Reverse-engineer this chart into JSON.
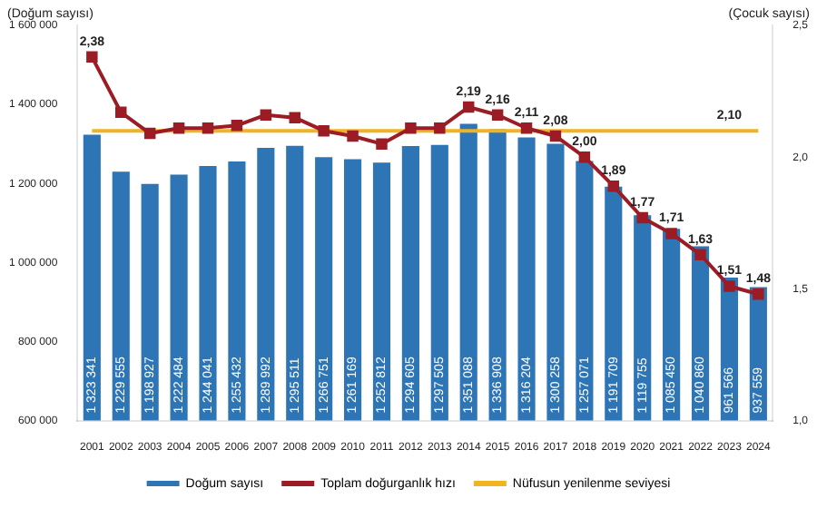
{
  "chart_data": {
    "type": "bar",
    "ylabel": "(Doğum sayısı)",
    "y2label": "(Çocuk sayısı)",
    "categories": [
      "2001",
      "2002",
      "2003",
      "2004",
      "2005",
      "2006",
      "2007",
      "2008",
      "2009",
      "2010",
      "2011",
      "2012",
      "2013",
      "2014",
      "2015",
      "2016",
      "2017",
      "2018",
      "2019",
      "2020",
      "2021",
      "2022",
      "2023",
      "2024"
    ],
    "series": [
      {
        "name": "Doğum sayısı",
        "color": "#2e75b6",
        "values": [
          1323341,
          1229555,
          1198927,
          1222484,
          1244041,
          1255432,
          1289992,
          1295511,
          1266751,
          1261169,
          1252812,
          1294605,
          1297505,
          1351088,
          1336908,
          1316204,
          1300258,
          1257071,
          1191709,
          1119755,
          1085450,
          1040860,
          961566,
          937559
        ],
        "value_labels": [
          "1 323 341",
          "1 229 555",
          "1 198 927",
          "1 222 484",
          "1 244 041",
          "1 255 432",
          "1 289 992",
          "1 295 511",
          "1 266 751",
          "1 261 169",
          "1 252 812",
          "1 294 605",
          "1 297 505",
          "1 351 088",
          "1 336 908",
          "1 316 204",
          "1 300 258",
          "1 257 071",
          "1 191 709",
          "1 119 755",
          "1 085 450",
          "1 040 860",
          "961 566",
          "937 559"
        ]
      },
      {
        "name": "Toplam doğurganlık hızı",
        "type": "line",
        "axis": "y2",
        "color": "#9b1c24",
        "marker": "square",
        "values": [
          2.38,
          2.17,
          2.09,
          2.11,
          2.11,
          2.12,
          2.16,
          2.15,
          2.1,
          2.08,
          2.05,
          2.11,
          2.11,
          2.19,
          2.16,
          2.11,
          2.08,
          2.0,
          1.89,
          1.77,
          1.71,
          1.63,
          1.51,
          1.48
        ],
        "value_labels": [
          "2,38",
          null,
          null,
          null,
          null,
          null,
          null,
          null,
          null,
          null,
          null,
          null,
          null,
          "2,19",
          "2,16",
          "2,11",
          "2,08",
          "2,00",
          "1,89",
          "1,77",
          "1,71",
          "1,63",
          "1,51",
          "1,48"
        ]
      },
      {
        "name": "Nüfusun yenilenme seviyesi",
        "type": "line",
        "axis": "y2",
        "color": "#f0b323",
        "marker": "none",
        "values": [
          2.1,
          2.1,
          2.1,
          2.1,
          2.1,
          2.1,
          2.1,
          2.1,
          2.1,
          2.1,
          2.1,
          2.1,
          2.1,
          2.1,
          2.1,
          2.1,
          2.1,
          2.1,
          2.1,
          2.1,
          2.1,
          2.1,
          2.1,
          2.1
        ],
        "value_labels": [
          null,
          null,
          null,
          null,
          null,
          null,
          null,
          null,
          null,
          null,
          null,
          null,
          null,
          null,
          null,
          null,
          null,
          null,
          null,
          null,
          null,
          null,
          "2,10",
          null
        ]
      }
    ],
    "ylim": [
      600000,
      1600000
    ],
    "yticks": [
      {
        "value": 600000,
        "label": "600 000"
      },
      {
        "value": 800000,
        "label": "800 000"
      },
      {
        "value": 1000000,
        "label": "1 000 000"
      },
      {
        "value": 1200000,
        "label": "1 200 000"
      },
      {
        "value": 1400000,
        "label": "1 400 000"
      },
      {
        "value": 1600000,
        "label": "1 600 000"
      }
    ],
    "y2lim": [
      1,
      2.5
    ],
    "y2ticks": [
      {
        "value": 1,
        "label": "1,0"
      },
      {
        "value": 1.5,
        "label": "1,5"
      },
      {
        "value": 2,
        "label": "2,0"
      },
      {
        "value": 2.5,
        "label": "2,5"
      }
    ],
    "grid": false,
    "legend": "bottom"
  }
}
